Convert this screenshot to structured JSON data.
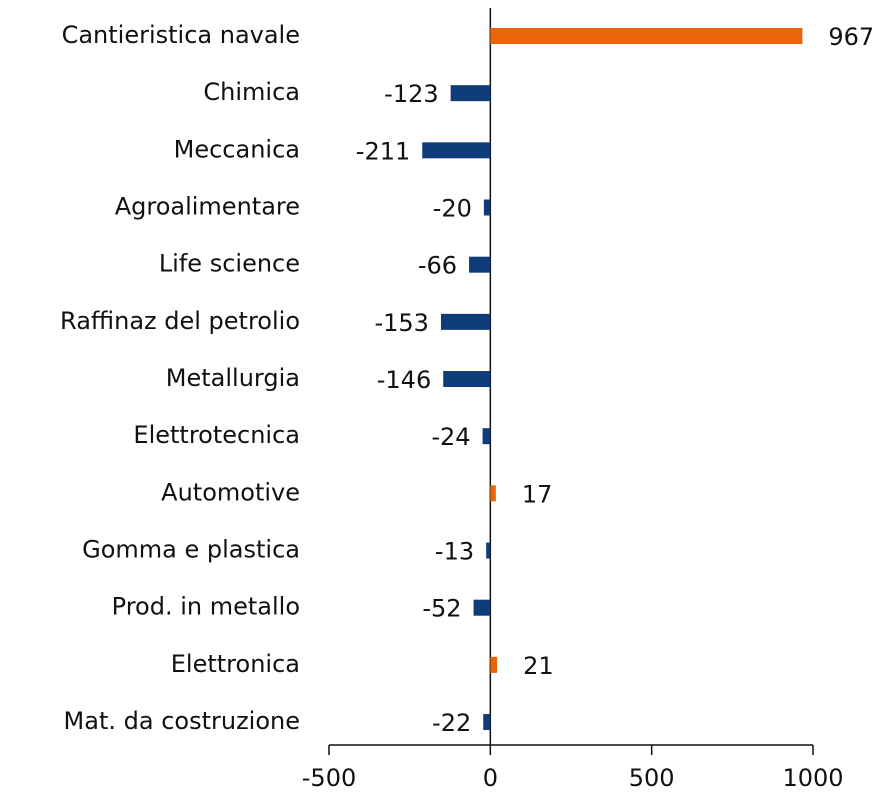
{
  "chart_data": {
    "type": "hbar",
    "categories": [
      "Cantieristica navale",
      "Chimica",
      "Meccanica",
      "Agroalimentare",
      "Life science",
      "Raffinaz del petrolio",
      "Metallurgia",
      "Elettrotecnica",
      "Automotive",
      "Gomma e plastica",
      "Prod. in metallo",
      "Elettronica",
      "Mat. da costruzione"
    ],
    "values": [
      967,
      -123,
      -211,
      -20,
      -66,
      -153,
      -146,
      -24,
      17,
      -13,
      -52,
      21,
      -22
    ],
    "positive_color": "#e8650a",
    "negative_color": "#0f3d7a",
    "xlim": [
      -500,
      1000
    ],
    "xticks": [
      -500,
      0,
      500,
      1000
    ]
  }
}
